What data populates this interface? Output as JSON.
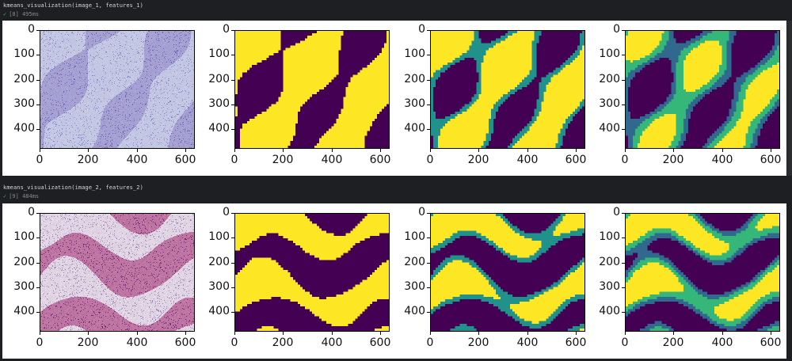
{
  "cells": [
    {
      "code": "kmeans_visualization(image_1, features_1)",
      "status": "[8] 495ms",
      "panels": [
        {
          "kind": "histology-blue-purple",
          "k": 0
        },
        {
          "kind": "kmeans",
          "k": 2
        },
        {
          "kind": "kmeans",
          "k": 3
        },
        {
          "kind": "kmeans",
          "k": 4
        }
      ]
    },
    {
      "code": "kmeans_visualization(image_2, features_2)",
      "status": "[9] 484ms",
      "panels": [
        {
          "kind": "histology-pink",
          "k": 0
        },
        {
          "kind": "kmeans",
          "k": 2
        },
        {
          "kind": "kmeans",
          "k": 3
        },
        {
          "kind": "kmeans",
          "k": 4
        }
      ]
    }
  ],
  "axes": {
    "yticks": [
      "0",
      "100",
      "200",
      "300",
      "400"
    ],
    "xticks": [
      "0",
      "200",
      "400",
      "600"
    ]
  },
  "colors": {
    "viridis_dark": "#440154",
    "viridis_blue": "#31688e",
    "viridis_teal": "#21918c",
    "viridis_green": "#35b779",
    "viridis_yellow": "#fde725"
  }
}
